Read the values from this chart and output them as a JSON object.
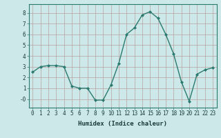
{
  "x": [
    0,
    1,
    2,
    3,
    4,
    5,
    6,
    7,
    8,
    9,
    10,
    11,
    12,
    13,
    14,
    15,
    16,
    17,
    18,
    19,
    20,
    21,
    22,
    23
  ],
  "y": [
    2.5,
    3.0,
    3.1,
    3.1,
    3.0,
    1.2,
    1.0,
    1.0,
    -0.1,
    -0.1,
    1.3,
    3.3,
    6.0,
    6.6,
    7.8,
    8.1,
    7.5,
    6.0,
    4.2,
    1.6,
    -0.2,
    2.3,
    2.7,
    2.9
  ],
  "line_color": "#2a7a6f",
  "marker": "D",
  "marker_size": 2,
  "bg_color": "#cce8e8",
  "grid_color": "#b8a0a0",
  "xlabel": "Humidex (Indice chaleur)",
  "xlim": [
    -0.5,
    23.5
  ],
  "ylim": [
    -0.8,
    8.8
  ],
  "yticks": [
    0,
    1,
    2,
    3,
    4,
    5,
    6,
    7,
    8
  ],
  "ytick_labels": [
    "-0",
    "1",
    "2",
    "3",
    "4",
    "5",
    "6",
    "7",
    "8"
  ],
  "xticks": [
    0,
    1,
    2,
    3,
    4,
    5,
    6,
    7,
    8,
    9,
    10,
    11,
    12,
    13,
    14,
    15,
    16,
    17,
    18,
    19,
    20,
    21,
    22,
    23
  ],
  "xlabel_fontsize": 6.5,
  "tick_fontsize": 5.5,
  "linewidth": 1.0
}
